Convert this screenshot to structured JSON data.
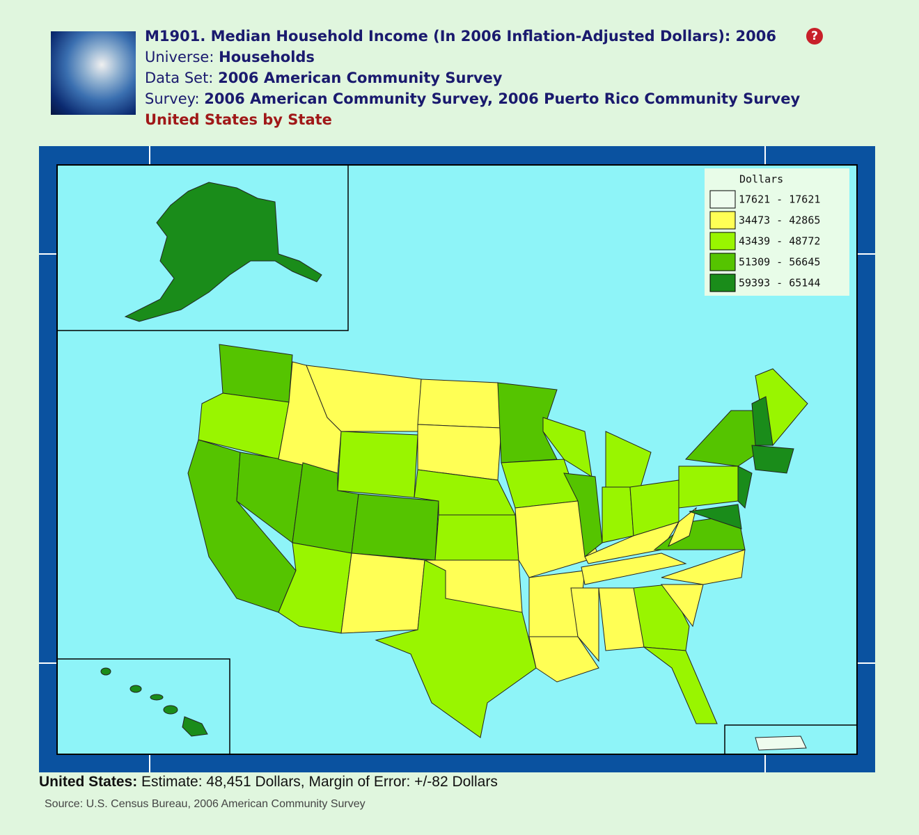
{
  "header": {
    "title": "M1901. Median Household Income (In 2006 Inflation-Adjusted Dollars): 2006",
    "help": "?",
    "info": [
      {
        "label": "Universe:",
        "value": "Households"
      },
      {
        "label": "Data Set:",
        "value": "2006 American Community Survey"
      },
      {
        "label": "Survey:",
        "value": "2006 American Community Survey, 2006 Puerto Rico Community Survey"
      }
    ],
    "geography": "United States by State"
  },
  "legend": {
    "title": "Dollars",
    "items": [
      {
        "label": "17621 - 17621",
        "color": "#eefcee"
      },
      {
        "label": "34473 - 42865",
        "color": "#ffff55"
      },
      {
        "label": "43439 - 48772",
        "color": "#99f500"
      },
      {
        "label": "51309 - 56645",
        "color": "#55c400"
      },
      {
        "label": "59393 - 65144",
        "color": "#1a8c1a"
      }
    ]
  },
  "footer": {
    "label": "United States:",
    "text": "Estimate: 48,451 Dollars, Margin of Error: +/-82 Dollars",
    "source": "Source: U.S. Census Bureau, 2006 American Community Survey"
  }
}
